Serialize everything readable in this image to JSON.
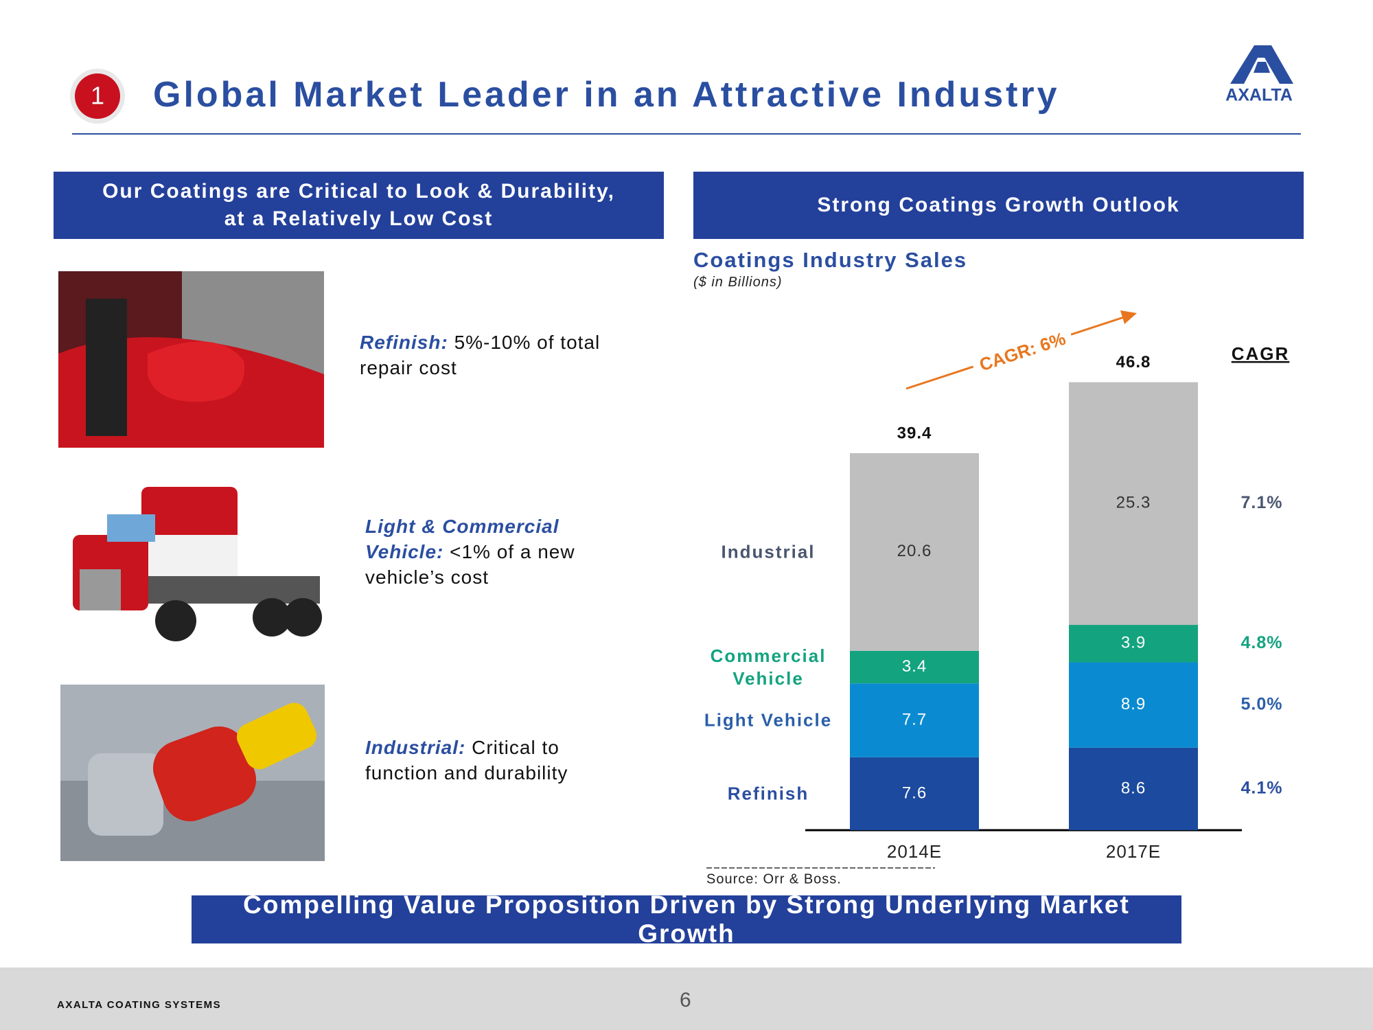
{
  "header": {
    "number": "1",
    "title": "Global Market Leader in an Attractive Industry",
    "logo": "AXALTA"
  },
  "left_panel": {
    "heading": [
      "Our Coatings are Critical to Look & Durability,",
      "at a Relatively Low Cost"
    ],
    "items": [
      {
        "label": "Refinish:",
        "text": "5%-10% of total repair cost"
      },
      {
        "label": "Light & Commercial Vehicle:",
        "text": "<1% of a new vehicle’s cost"
      },
      {
        "label": "Industrial:",
        "text": "Critical to function and durability"
      }
    ]
  },
  "right_panel": {
    "heading": "Strong Coatings Growth Outlook"
  },
  "chart_data": {
    "type": "stacked_bar",
    "title": "Coatings Industry Sales",
    "subtitle": "($ in Billions)",
    "categories": [
      "2014E",
      "2017E"
    ],
    "series": [
      {
        "name": "Refinish",
        "color": "#1b4a9e",
        "label_color": "#2a4ea0",
        "values": [
          7.6,
          8.6
        ],
        "cagr": "4.1%"
      },
      {
        "name": "Light Vehicle",
        "color": "#0a8bd1",
        "label_color": "#2a5fa8",
        "values": [
          7.7,
          8.9
        ],
        "cagr": "5.0%"
      },
      {
        "name": "Commercial Vehicle",
        "color": "#13a37f",
        "label_color": "#13a37f",
        "values": [
          3.4,
          3.9
        ],
        "cagr": "4.8%"
      },
      {
        "name": "Industrial",
        "color": "#bfbfbf",
        "label_color": "#4a5670",
        "values": [
          20.6,
          25.3
        ],
        "cagr": "7.1%"
      }
    ],
    "totals": [
      39.4,
      46.8
    ],
    "cagr_header": "CAGR",
    "annotation": "CAGR: 6%",
    "source": "Source: Orr & Boss."
  },
  "banner": "Compelling Value Proposition Driven by Strong Underlying Market Growth",
  "footer": {
    "company": "AXALTA COATING SYSTEMS",
    "page": "6"
  }
}
